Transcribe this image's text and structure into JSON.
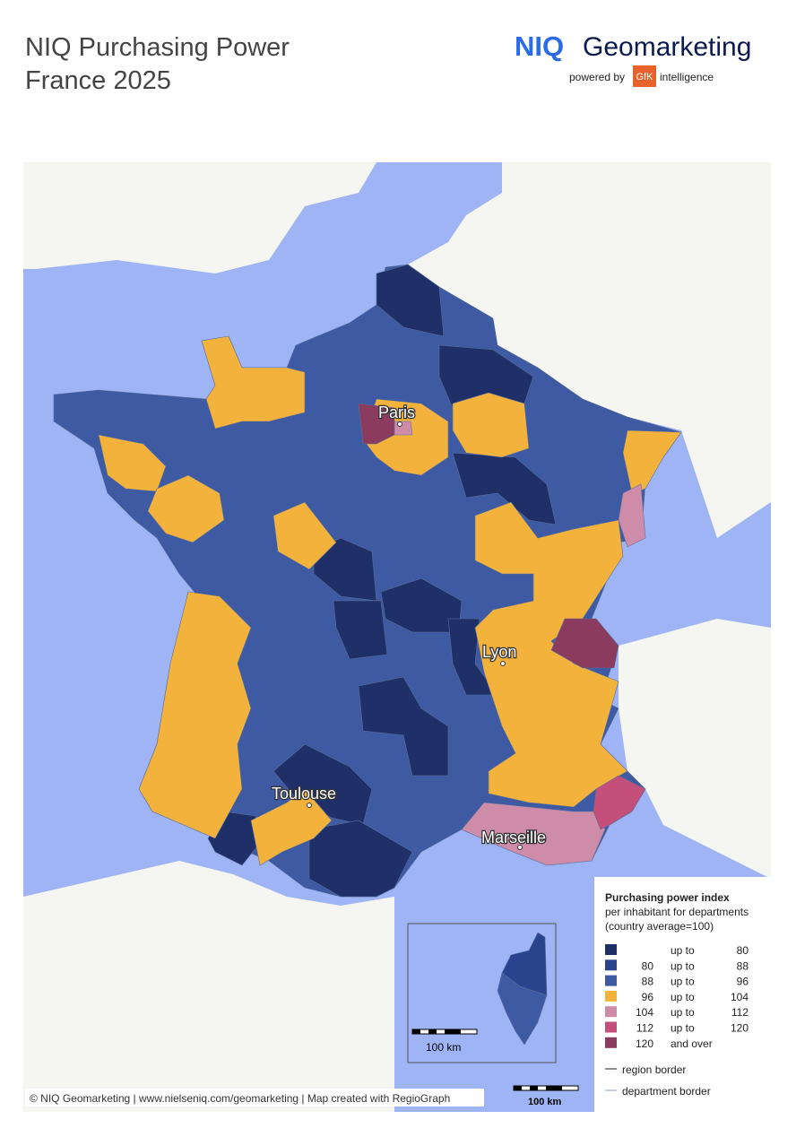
{
  "header": {
    "title_line1": "NIQ Purchasing Power",
    "title_line2": "France 2025",
    "logo": {
      "brand": "NIQ",
      "product": "Geomarketing",
      "powered_by": "powered by",
      "partner": "GfK",
      "partner_suffix": "intelligence"
    }
  },
  "map": {
    "cities": [
      "Paris",
      "Lyon",
      "Toulouse",
      "Marseille"
    ],
    "inset_scale": "100 km",
    "main_scale": "100 km",
    "credit": "© NIQ Geomarketing | www.nielseniq.com/geomarketing | Map created with RegioGraph"
  },
  "legend": {
    "title": "Purchasing power index",
    "subtitle_line1": "per inhabitant for departments",
    "subtitle_line2": "(country average=100)",
    "classes": [
      {
        "connector": "up to",
        "to": "80",
        "color": "#1f3068"
      },
      {
        "from": "80",
        "connector": "up to",
        "to": "88",
        "color": "#2a438d"
      },
      {
        "from": "88",
        "connector": "up to",
        "to": "96",
        "color": "#3d5aa2"
      },
      {
        "from": "96",
        "connector": "up to",
        "to": "104",
        "color": "#f2b23c"
      },
      {
        "from": "104",
        "connector": "up to",
        "to": "112",
        "color": "#cf8ca8"
      },
      {
        "from": "112",
        "connector": "up to",
        "to": "120",
        "color": "#c44f7b"
      },
      {
        "from": "120",
        "connector": "and over",
        "color": "#8b3b5e"
      }
    ],
    "region_border": "region border",
    "department_border": "department border"
  }
}
